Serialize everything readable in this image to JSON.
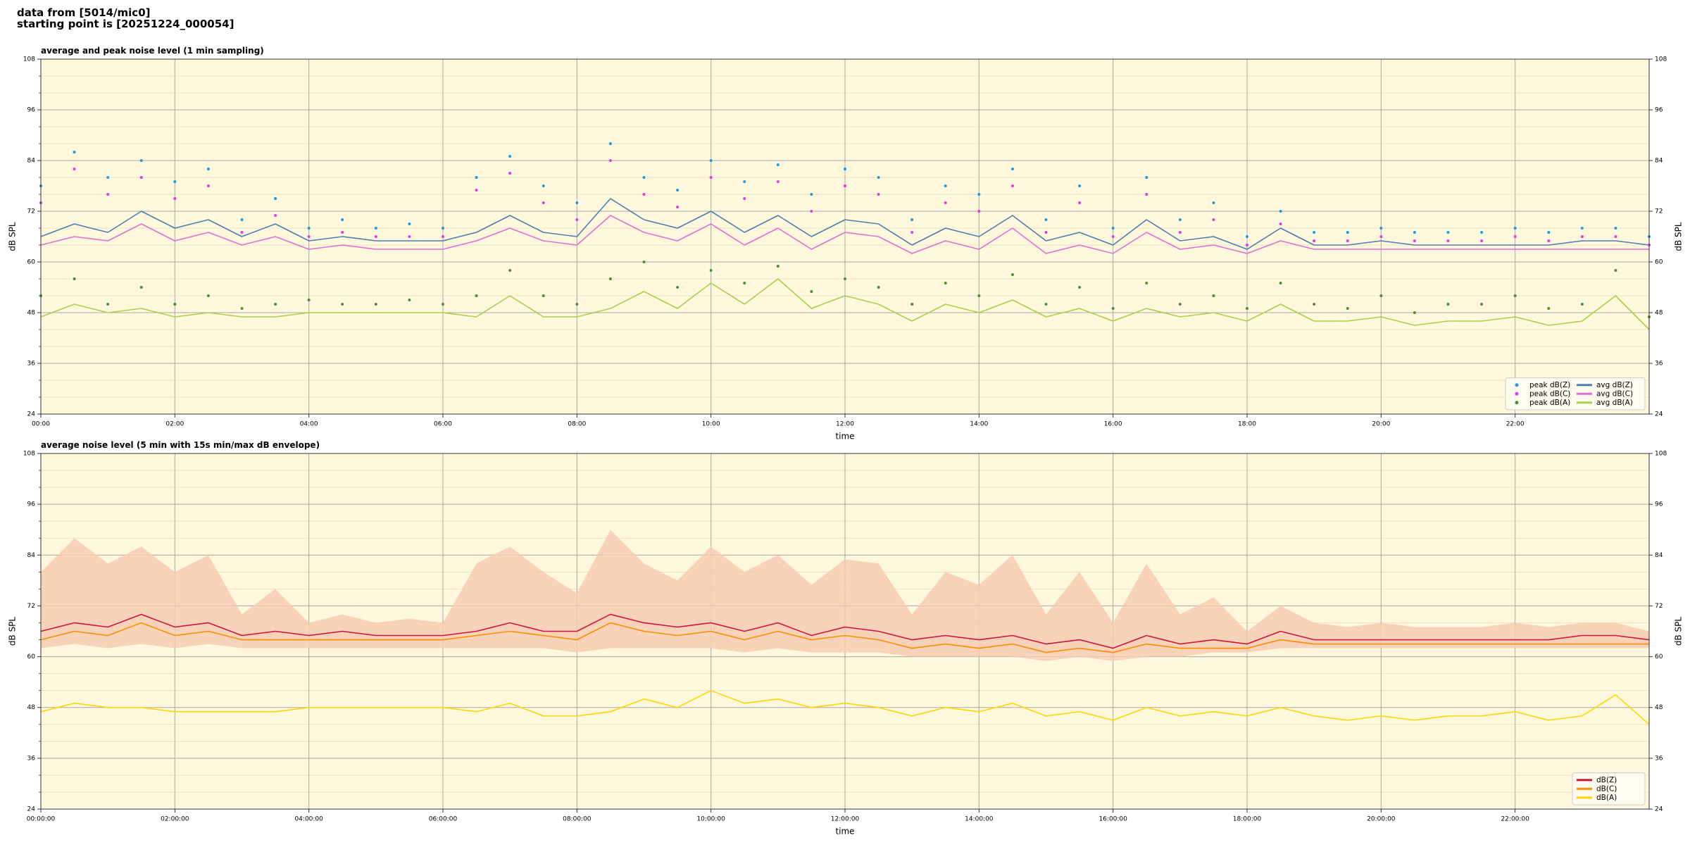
{
  "header": [
    "data from [5014/mic0]",
    "starting point is [20251224_000054]"
  ],
  "chart_data": [
    {
      "type": "line",
      "title": "average and peak noise level (1 min sampling)",
      "xlabel": "time",
      "ylabel": "dB SPL",
      "y2label": "dB SPL",
      "background": "#fff8dc",
      "grid": true,
      "legend": "lower right",
      "legend_columns": 2,
      "xlim": [
        0,
        24
      ],
      "xticks": [
        {
          "value": 0,
          "label": "00:00"
        },
        {
          "value": 2,
          "label": "02:00"
        },
        {
          "value": 4,
          "label": "04:00"
        },
        {
          "value": 6,
          "label": "06:00"
        },
        {
          "value": 8,
          "label": "08:00"
        },
        {
          "value": 10,
          "label": "10:00"
        },
        {
          "value": 12,
          "label": "12:00"
        },
        {
          "value": 14,
          "label": "14:00"
        },
        {
          "value": 16,
          "label": "16:00"
        },
        {
          "value": 18,
          "label": "18:00"
        },
        {
          "value": 20,
          "label": "20:00"
        },
        {
          "value": 22,
          "label": "22:00"
        }
      ],
      "ylim": [
        24,
        108
      ],
      "yticks": [
        24,
        36,
        48,
        60,
        72,
        84,
        96,
        108
      ],
      "yminorticks": [
        28,
        32,
        40,
        44,
        52,
        56,
        64,
        68,
        76,
        80,
        88,
        92,
        100,
        104
      ],
      "y2lim": [
        24,
        108
      ],
      "y2ticks": [
        24,
        36,
        48,
        60,
        72,
        84,
        96,
        108
      ],
      "x": [
        0,
        0.5,
        1,
        1.5,
        2,
        2.5,
        3,
        3.5,
        4,
        4.5,
        5,
        5.5,
        6,
        6.5,
        7,
        7.5,
        8,
        8.5,
        9,
        9.5,
        10,
        10.5,
        11,
        11.5,
        12,
        12.5,
        13,
        13.5,
        14,
        14.5,
        15,
        15.5,
        16,
        16.5,
        17,
        17.5,
        18,
        18.5,
        19,
        19.5,
        20,
        20.5,
        21,
        21.5,
        22,
        22.5,
        23,
        23.5,
        24
      ],
      "series": [
        {
          "name": "peak dB(Z)",
          "type": "scatter",
          "color": "#1f9be0",
          "values": [
            78,
            86,
            80,
            84,
            79,
            82,
            70,
            75,
            68,
            70,
            68,
            69,
            68,
            80,
            85,
            78,
            74,
            88,
            80,
            77,
            84,
            79,
            83,
            76,
            82,
            80,
            70,
            78,
            76,
            82,
            70,
            78,
            68,
            80,
            70,
            74,
            66,
            72,
            67,
            67,
            68,
            67,
            67,
            67,
            68,
            67,
            68,
            68,
            66
          ]
        },
        {
          "name": "peak dB(C)",
          "type": "scatter",
          "color": "#e03ce0",
          "values": [
            74,
            82,
            76,
            80,
            75,
            78,
            67,
            71,
            66,
            67,
            66,
            66,
            66,
            77,
            81,
            74,
            70,
            84,
            76,
            73,
            80,
            75,
            79,
            72,
            78,
            76,
            67,
            74,
            72,
            78,
            67,
            74,
            66,
            76,
            67,
            70,
            64,
            69,
            65,
            65,
            66,
            65,
            65,
            65,
            66,
            65,
            66,
            66,
            64
          ]
        },
        {
          "name": "peak dB(A)",
          "type": "scatter",
          "color": "#4a8f3a",
          "values": [
            52,
            56,
            50,
            54,
            50,
            52,
            49,
            50,
            51,
            50,
            50,
            51,
            50,
            52,
            58,
            52,
            50,
            56,
            60,
            54,
            58,
            55,
            59,
            53,
            56,
            54,
            50,
            55,
            52,
            57,
            50,
            54,
            49,
            55,
            50,
            52,
            49,
            55,
            50,
            49,
            52,
            48,
            50,
            50,
            52,
            49,
            50,
            58,
            47
          ]
        },
        {
          "name": "avg dB(Z)",
          "type": "line",
          "color": "#4a7fb0",
          "values": [
            66,
            69,
            67,
            72,
            68,
            70,
            66,
            69,
            65,
            66,
            65,
            65,
            65,
            67,
            71,
            67,
            66,
            75,
            70,
            68,
            72,
            67,
            71,
            66,
            70,
            69,
            64,
            68,
            66,
            71,
            65,
            67,
            64,
            70,
            65,
            66,
            63,
            68,
            64,
            64,
            65,
            64,
            64,
            64,
            64,
            64,
            65,
            65,
            64
          ]
        },
        {
          "name": "avg dB(C)",
          "type": "line",
          "color": "#e070d0",
          "values": [
            64,
            66,
            65,
            69,
            65,
            67,
            64,
            66,
            63,
            64,
            63,
            63,
            63,
            65,
            68,
            65,
            64,
            71,
            67,
            65,
            69,
            64,
            68,
            63,
            67,
            66,
            62,
            65,
            63,
            68,
            62,
            64,
            62,
            67,
            63,
            64,
            62,
            65,
            63,
            63,
            63,
            63,
            63,
            63,
            63,
            63,
            63,
            63,
            63
          ]
        },
        {
          "name": "avg dB(A)",
          "type": "line",
          "color": "#a8d04a",
          "values": [
            47,
            50,
            48,
            49,
            47,
            48,
            47,
            47,
            48,
            48,
            48,
            48,
            48,
            47,
            52,
            47,
            47,
            49,
            53,
            49,
            55,
            50,
            56,
            49,
            52,
            50,
            46,
            50,
            48,
            51,
            47,
            49,
            46,
            49,
            47,
            48,
            46,
            50,
            46,
            46,
            47,
            45,
            46,
            46,
            47,
            45,
            46,
            52,
            44
          ]
        }
      ]
    },
    {
      "type": "line",
      "title": "average noise level (5 min with 15s min/max dB envelope)",
      "xlabel": "time",
      "ylabel": "dB SPL",
      "y2label": "dB SPL",
      "background": "#fff8dc",
      "grid": true,
      "legend": "lower right",
      "legend_columns": 1,
      "xlim": [
        0,
        24
      ],
      "xticks": [
        {
          "value": 0,
          "label": "00:00:00"
        },
        {
          "value": 2,
          "label": "02:00:00"
        },
        {
          "value": 4,
          "label": "04:00:00"
        },
        {
          "value": 6,
          "label": "06:00:00"
        },
        {
          "value": 8,
          "label": "08:00:00"
        },
        {
          "value": 10,
          "label": "10:00:00"
        },
        {
          "value": 12,
          "label": "12:00:00"
        },
        {
          "value": 14,
          "label": "14:00:00"
        },
        {
          "value": 16,
          "label": "16:00:00"
        },
        {
          "value": 18,
          "label": "18:00:00"
        },
        {
          "value": 20,
          "label": "20:00:00"
        },
        {
          "value": 22,
          "label": "22:00:00"
        }
      ],
      "ylim": [
        24,
        108
      ],
      "yticks": [
        24,
        36,
        48,
        60,
        72,
        84,
        96,
        108
      ],
      "yminorticks": [
        28,
        32,
        40,
        44,
        52,
        56,
        64,
        68,
        76,
        80,
        88,
        92,
        100,
        104
      ],
      "y2lim": [
        24,
        108
      ],
      "y2ticks": [
        24,
        36,
        48,
        60,
        72,
        84,
        96,
        108
      ],
      "x": [
        0,
        0.5,
        1,
        1.5,
        2,
        2.5,
        3,
        3.5,
        4,
        4.5,
        5,
        5.5,
        6,
        6.5,
        7,
        7.5,
        8,
        8.5,
        9,
        9.5,
        10,
        10.5,
        11,
        11.5,
        12,
        12.5,
        13,
        13.5,
        14,
        14.5,
        15,
        15.5,
        16,
        16.5,
        17,
        17.5,
        18,
        18.5,
        19,
        19.5,
        20,
        20.5,
        21,
        21.5,
        22,
        22.5,
        23,
        23.5,
        24
      ],
      "envelope": {
        "color": "#f7c9b0",
        "min": [
          62,
          63,
          62,
          63,
          62,
          63,
          62,
          62,
          62,
          62,
          62,
          62,
          62,
          62,
          62,
          62,
          61,
          62,
          62,
          62,
          62,
          61,
          62,
          61,
          61,
          61,
          60,
          60,
          60,
          60,
          59,
          60,
          59,
          60,
          60,
          61,
          61,
          62,
          62,
          62,
          62,
          62,
          62,
          62,
          62,
          62,
          62,
          62,
          62
        ],
        "max": [
          80,
          88,
          82,
          86,
          80,
          84,
          70,
          76,
          68,
          70,
          68,
          69,
          68,
          82,
          86,
          80,
          75,
          90,
          82,
          78,
          86,
          80,
          84,
          77,
          83,
          82,
          70,
          80,
          77,
          84,
          70,
          80,
          68,
          82,
          70,
          74,
          66,
          72,
          68,
          67,
          68,
          67,
          67,
          67,
          68,
          67,
          68,
          68,
          66
        ]
      },
      "series": [
        {
          "name": "dB(Z)",
          "type": "line",
          "color": "#d0143c",
          "values": [
            66,
            68,
            67,
            70,
            67,
            68,
            65,
            66,
            65,
            66,
            65,
            65,
            65,
            66,
            68,
            66,
            66,
            70,
            68,
            67,
            68,
            66,
            68,
            65,
            67,
            66,
            64,
            65,
            64,
            65,
            63,
            64,
            62,
            65,
            63,
            64,
            63,
            66,
            64,
            64,
            64,
            64,
            64,
            64,
            64,
            64,
            65,
            65,
            64
          ]
        },
        {
          "name": "dB(C)",
          "type": "line",
          "color": "#ff8c00",
          "values": [
            64,
            66,
            65,
            68,
            65,
            66,
            64,
            64,
            64,
            64,
            64,
            64,
            64,
            65,
            66,
            65,
            64,
            68,
            66,
            65,
            66,
            64,
            66,
            64,
            65,
            64,
            62,
            63,
            62,
            63,
            61,
            62,
            61,
            63,
            62,
            62,
            62,
            64,
            63,
            63,
            63,
            63,
            63,
            63,
            63,
            63,
            63,
            63,
            63
          ]
        },
        {
          "name": "dB(A)",
          "type": "line",
          "color": "#ffd700",
          "values": [
            47,
            49,
            48,
            48,
            47,
            47,
            47,
            47,
            48,
            48,
            48,
            48,
            48,
            47,
            49,
            46,
            46,
            47,
            50,
            48,
            52,
            49,
            50,
            48,
            49,
            48,
            46,
            48,
            47,
            49,
            46,
            47,
            45,
            48,
            46,
            47,
            46,
            48,
            46,
            45,
            46,
            45,
            46,
            46,
            47,
            45,
            46,
            51,
            44
          ]
        }
      ]
    }
  ]
}
